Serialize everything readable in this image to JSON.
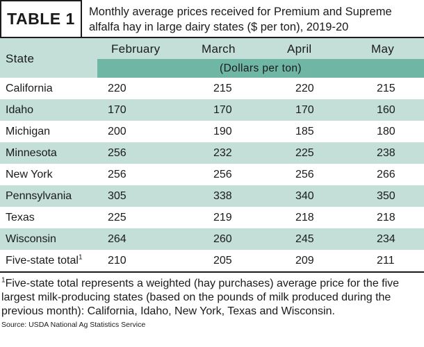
{
  "header": {
    "tag": "TABLE 1",
    "caption": "Monthly average prices received for Premium and Supreme alfalfa hay in large dairy states ($ per ton), 2019-20"
  },
  "columns": {
    "state": "State",
    "months": [
      "February",
      "March",
      "April",
      "May"
    ],
    "unit": "(Dollars per ton)"
  },
  "rows": [
    {
      "state": "California",
      "values": [
        "220",
        "215",
        "220",
        "215"
      ]
    },
    {
      "state": "Idaho",
      "values": [
        "170",
        "170",
        "170",
        "160"
      ]
    },
    {
      "state": "Michigan",
      "values": [
        "200",
        "190",
        "185",
        "180"
      ]
    },
    {
      "state": "Minnesota",
      "values": [
        "256",
        "232",
        "225",
        "238"
      ]
    },
    {
      "state": "New York",
      "values": [
        "256",
        "256",
        "256",
        "266"
      ]
    },
    {
      "state": "Pennsylvania",
      "values": [
        "305",
        "338",
        "340",
        "350"
      ]
    },
    {
      "state": "Texas",
      "values": [
        "225",
        "219",
        "218",
        "218"
      ]
    },
    {
      "state": "Wisconsin",
      "values": [
        "264",
        "260",
        "245",
        "234"
      ]
    },
    {
      "state": "Five-state total",
      "sup": "1",
      "values": [
        "210",
        "205",
        "209",
        "211"
      ]
    }
  ],
  "footnote": {
    "marker": "1",
    "text": "Five-state total represents a weighted (hay purchases) average price for the five largest milk-producing states (based on the pounds of milk produced during the previous month): California, Idaho, New York, Texas and Wisconsin."
  },
  "source": "Source: USDA National Ag Statistics Service",
  "colors": {
    "light_band": "#c3dfd7",
    "dark_band": "#6fb6a4",
    "text": "#1a1a1a"
  }
}
